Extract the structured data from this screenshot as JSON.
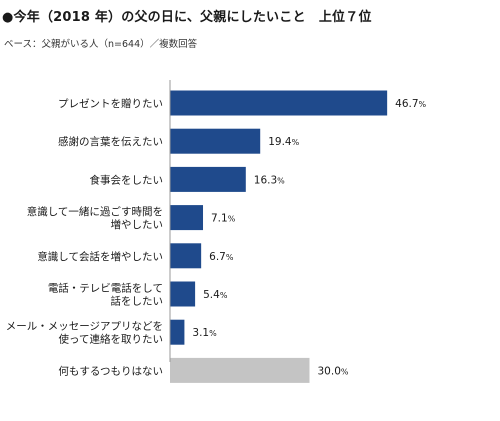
{
  "header": {
    "title": "●今年（2018 年）の父の日に、父親にしたいこと　上位７位",
    "subtitle": "ベース：父親がいる人（n=644）／複数回答"
  },
  "colors": {
    "primary": "#1f4a8c",
    "other": "#c4c4c4",
    "axis": "#9a9a9a"
  },
  "chart_data": {
    "type": "bar",
    "orientation": "horizontal",
    "title": "●今年（2018 年）の父の日に、父親にしたいこと　上位７位",
    "subtitle": "ベース：父親がいる人（n=644）／複数回答",
    "unit": "%",
    "categories": [
      [
        "プレゼントを贈りたい"
      ],
      [
        "感謝の言葉を伝えたい"
      ],
      [
        "食事会をしたい"
      ],
      [
        "意識して一緒に過ごす時間を",
        "増やしたい"
      ],
      [
        "意識して会話を増やしたい"
      ],
      [
        "電話・テレビ電話をして",
        "話をしたい"
      ],
      [
        "メール・メッセージアプリなどを",
        "使って連絡を取りたい"
      ],
      [
        "何もするつもりはない"
      ]
    ],
    "values": [
      46.7,
      19.4,
      16.3,
      7.1,
      6.7,
      5.4,
      3.1,
      30.0
    ],
    "value_labels": [
      "46.7",
      "19.4",
      "16.3",
      "7.1",
      "6.7",
      "5.4",
      "3.1",
      "30.0"
    ],
    "highlight": [
      true,
      true,
      true,
      true,
      true,
      true,
      true,
      false
    ],
    "xlim": [
      0,
      50
    ],
    "grid": false,
    "legend": "none"
  }
}
